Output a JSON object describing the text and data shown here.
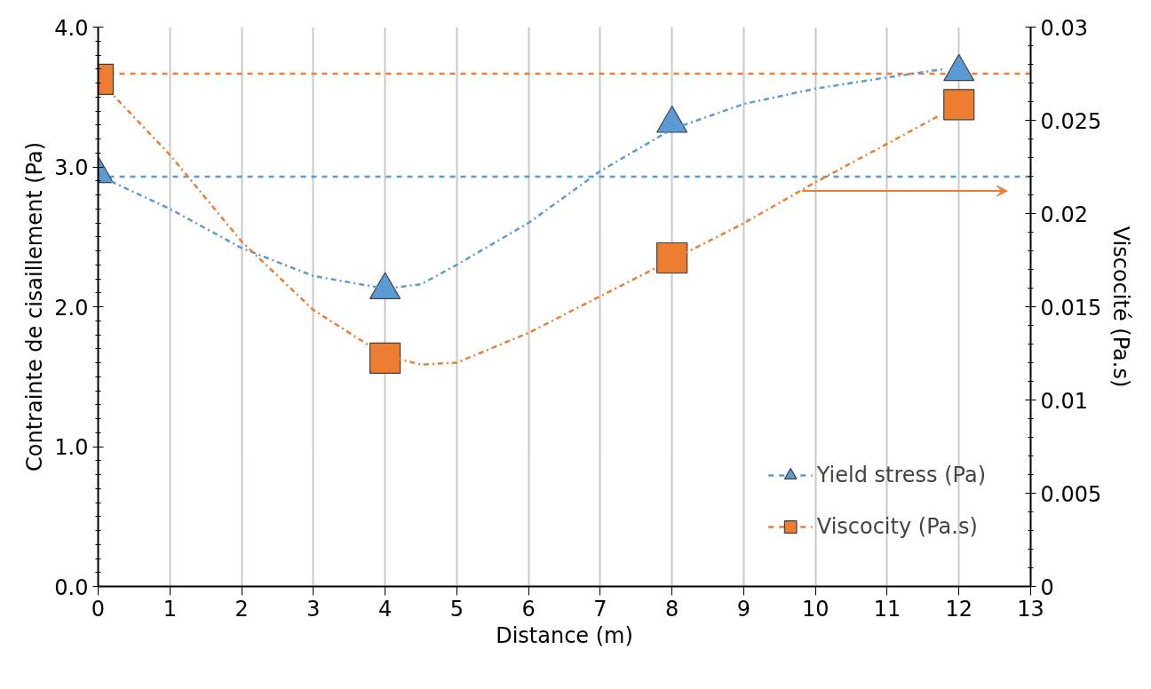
{
  "chart_data": {
    "type": "scatter",
    "xlabel": "Distance (m)",
    "ylabel": "Contrainte de cisaillement (Pa)",
    "y2label": "Viscocité (Pa.s)",
    "x": [
      0,
      4,
      8,
      12
    ],
    "series": [
      {
        "name": "Yield stress (Pa)",
        "color": "#5b9bd5",
        "marker": "triangle",
        "values": [
          2.95,
          2.12,
          3.31,
          3.68
        ]
      },
      {
        "name": "Viscocity (Pa.s)",
        "color": "#ed7d31",
        "marker": "square",
        "axis": "y2",
        "values": [
          0.0272,
          0.01224,
          0.01762,
          0.02584
        ]
      },
      {
        "type": "line",
        "color": "#5b9bd5",
        "line_style": "dashdot",
        "x": [
          0,
          1,
          2,
          3,
          4,
          4.5,
          5,
          6,
          7,
          8,
          9,
          10,
          11,
          11.8
        ],
        "values": [
          2.94,
          2.7,
          2.42,
          2.22,
          2.13,
          2.16,
          2.3,
          2.6,
          2.97,
          3.27,
          3.45,
          3.56,
          3.64,
          3.7
        ]
      },
      {
        "type": "line",
        "color": "#ed7d31",
        "line_style": "dashdot",
        "axis": "y2",
        "x": [
          0,
          1,
          2,
          3,
          4,
          4.5,
          5,
          6,
          7,
          8,
          9,
          10,
          11,
          11.7
        ],
        "values": [
          0.0272,
          0.02315,
          0.0185,
          0.01483,
          0.01238,
          0.0119,
          0.012,
          0.0136,
          0.01556,
          0.01752,
          0.01948,
          0.02168,
          0.02374,
          0.0252
        ]
      }
    ],
    "ref_lines": [
      {
        "axis": "y",
        "value": 2.93,
        "color": "#5b9bd5",
        "line_style": "dashed"
      },
      {
        "axis": "y2",
        "value": 0.0275,
        "color": "#ed7d31",
        "line_style": "dashed"
      }
    ],
    "xlim": [
      0,
      13
    ],
    "xticks": [
      0,
      1,
      2,
      3,
      4,
      5,
      6,
      7,
      8,
      9,
      10,
      11,
      12,
      13
    ],
    "ylim": [
      0,
      4
    ],
    "yticks": [
      {
        "value": 0,
        "label": "0.0"
      },
      {
        "value": 1,
        "label": "1.0"
      },
      {
        "value": 2,
        "label": "2.0"
      },
      {
        "value": 3,
        "label": "3.0"
      },
      {
        "value": 4,
        "label": "4.0"
      }
    ],
    "y2lim": [
      0,
      0.03
    ],
    "y2ticks": [
      0,
      0.005,
      0.01,
      0.015,
      0.02,
      0.025,
      0.03
    ],
    "grid": "x",
    "legend": "bottom right"
  }
}
